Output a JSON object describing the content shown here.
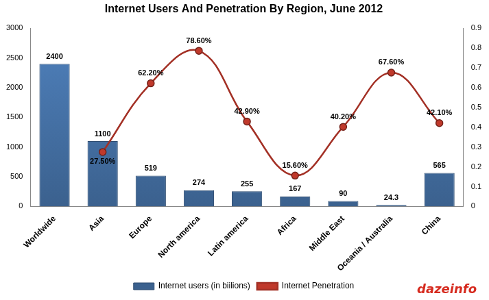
{
  "chart_data": {
    "type": "bar",
    "title": "Internet Users And Penetration By Region, June 2012",
    "categories": [
      "Worldwide",
      "Asia",
      "Europe",
      "North america",
      "Latin america",
      "Africa",
      "Middle East",
      "Oceania / Australia",
      "China"
    ],
    "series": [
      {
        "name": "Internet users (in biilions)",
        "type": "bar",
        "color": "#4f81bd",
        "values": [
          2400,
          1100,
          519,
          274,
          255,
          167,
          90,
          24.3,
          565
        ]
      },
      {
        "name": "Internet Penetration",
        "type": "line",
        "axis": "y2",
        "color": "#c0392b",
        "marker": "circle",
        "line_style": "smooth",
        "values": [
          null,
          0.275,
          0.622,
          0.786,
          0.429,
          0.156,
          0.402,
          0.676,
          0.421
        ],
        "value_labels": [
          null,
          "27.50%",
          "62.20%",
          "78.60%",
          "42.90%",
          "15.60%",
          "40.20%",
          "67.60%",
          "42.10%"
        ]
      }
    ],
    "ylim": [
      0,
      3000
    ],
    "yticks": [
      0,
      500,
      1000,
      1500,
      2000,
      2500,
      3000
    ],
    "y2lim": [
      0,
      0.9
    ],
    "y2ticks": [
      0,
      0.1,
      0.2,
      0.3,
      0.4,
      0.5,
      0.6,
      0.7,
      0.8,
      0.9
    ],
    "grid": false,
    "legend": "bottom",
    "data_labels": true,
    "annotations": [
      "dazeinfo"
    ]
  }
}
